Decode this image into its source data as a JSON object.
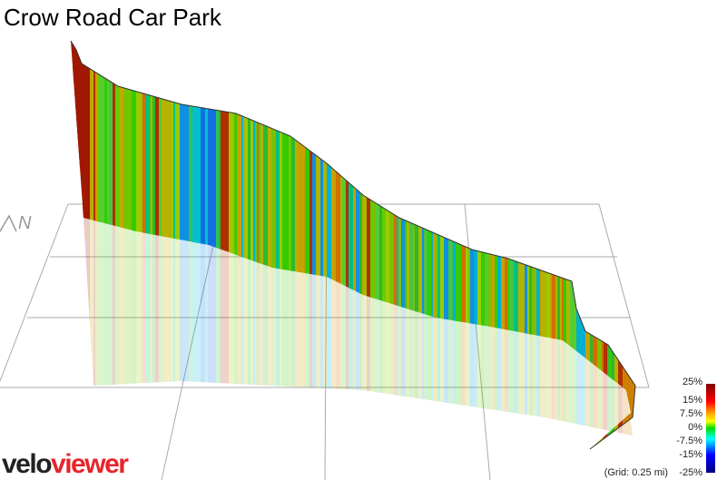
{
  "title": "Crow Road Car Park",
  "compass": "N",
  "legend": {
    "ticks": [
      "25%",
      "15%",
      "7.5%",
      "0%",
      "-7.5%",
      "-15%",
      "-25%"
    ]
  },
  "grid_note": "(Grid: 0.25 mi)",
  "logo": {
    "part1": "velo",
    "part2": "viewer"
  }
}
